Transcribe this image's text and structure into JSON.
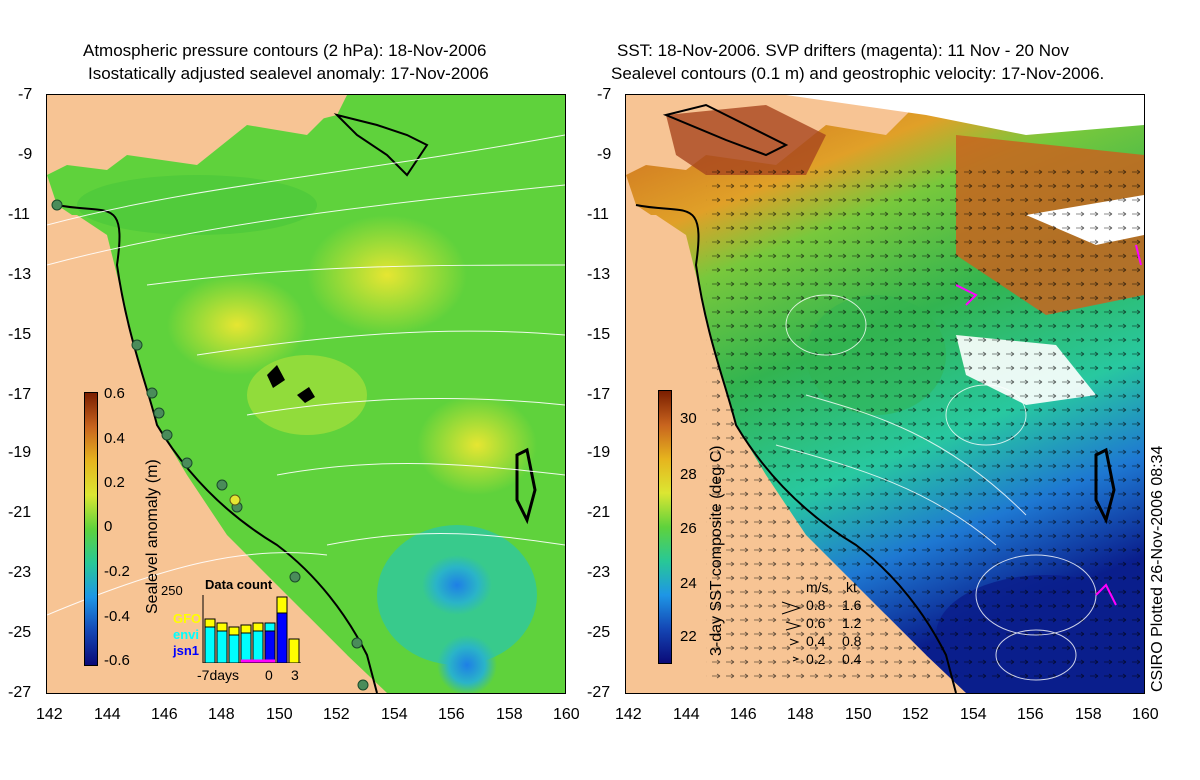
{
  "left_panel": {
    "title_line1": "Atmospheric pressure contours (2 hPa): 18-Nov-2006",
    "title_line2": "Isostatically adjusted sealevel anomaly: 17-Nov-2006",
    "colorbar_label": "Sealevel anomaly (m)",
    "colorbar_ticks": [
      "0.6",
      "0.4",
      "0.2",
      "0",
      "-0.2",
      "-0.4",
      "-0.6"
    ],
    "data_count": {
      "title": "Data count",
      "max_label": "250",
      "x_labels": [
        "-7days",
        "0",
        "3"
      ],
      "satellites": [
        {
          "name": "GFO",
          "color": "#ffff00"
        },
        {
          "name": "envi",
          "color": "#00ffff"
        },
        {
          "name": "jsn1",
          "color": "#0000ff"
        }
      ]
    }
  },
  "right_panel": {
    "title_line1": "SST: 18-Nov-2006. SVP drifters (magenta): 11 Nov - 20 Nov",
    "title_line2": "Sealevel contours (0.1 m) and geostrophic velocity: 17-Nov-2006.",
    "colorbar_label": "3-day SST composite (deg C)",
    "colorbar_ticks": [
      "30",
      "28",
      "26",
      "24",
      "22"
    ],
    "velocity_legend": {
      "header_ms": "m/s",
      "header_kt": "kt",
      "rows": [
        {
          "ms": "0.8",
          "kt": "1.6"
        },
        {
          "ms": "0.6",
          "kt": "1.2"
        },
        {
          "ms": "0.4",
          "kt": "0.8"
        },
        {
          "ms": "0.2",
          "kt": "0.4"
        }
      ]
    }
  },
  "axes": {
    "lat_ticks": [
      "-7",
      "-9",
      "-11",
      "-13",
      "-15",
      "-17",
      "-19",
      "-21",
      "-23",
      "-25",
      "-27"
    ],
    "lon_ticks": [
      "142",
      "144",
      "146",
      "148",
      "150",
      "152",
      "154",
      "156",
      "158",
      "160"
    ]
  },
  "credit": "CSIRO Plotted 26-Nov-2006 08:34",
  "colors": {
    "land": "#f7c494",
    "sla_green": "#5fd23c",
    "sla_yellow": "#c8e632",
    "sst_warm": "#c8641e",
    "sst_mid": "#32b450",
    "sst_cool": "#1446b4"
  }
}
